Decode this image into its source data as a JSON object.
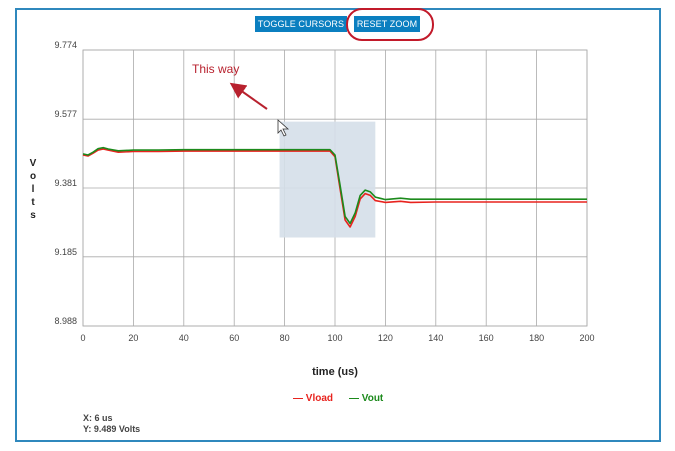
{
  "toolbar": {
    "toggle_cursors_label": "TOGGLE CURSORS",
    "reset_zoom_label": "RESET ZOOM"
  },
  "annotation": {
    "text": "This way"
  },
  "readout": {
    "x": "X: 6 us",
    "y": "Y: 9.489 Volts"
  },
  "colors": {
    "accent": "#0b7fc0",
    "frame": "#2f88bd",
    "highlight": "#c21a2a",
    "vload": "#e8231e",
    "vout": "#1c8a1c",
    "zoom_selection": "#d5dfe9"
  },
  "chart_data": {
    "type": "line",
    "xlabel": "time (us)",
    "ylabel": "Volts",
    "xlim": [
      0,
      200
    ],
    "ylim": [
      8.988,
      9.774
    ],
    "x_ticks": [
      0,
      20,
      40,
      60,
      80,
      100,
      120,
      140,
      160,
      180,
      200
    ],
    "y_ticks": [
      "8.988",
      "9.185",
      "9.381",
      "9.577",
      "9.774"
    ],
    "grid": true,
    "legend_position": "bottom-center",
    "zoom_selection": {
      "x_range": [
        78,
        116
      ],
      "y_range": [
        9.24,
        9.57
      ]
    },
    "series": [
      {
        "name": "Vload",
        "color": "#e8231e",
        "points": [
          [
            0,
            9.475
          ],
          [
            2,
            9.472
          ],
          [
            4,
            9.48
          ],
          [
            6,
            9.489
          ],
          [
            8,
            9.492
          ],
          [
            10,
            9.489
          ],
          [
            14,
            9.483
          ],
          [
            20,
            9.485
          ],
          [
            30,
            9.485
          ],
          [
            40,
            9.486
          ],
          [
            60,
            9.486
          ],
          [
            80,
            9.486
          ],
          [
            98,
            9.486
          ],
          [
            100,
            9.47
          ],
          [
            102,
            9.38
          ],
          [
            104,
            9.29
          ],
          [
            106,
            9.27
          ],
          [
            108,
            9.3
          ],
          [
            110,
            9.35
          ],
          [
            112,
            9.365
          ],
          [
            114,
            9.36
          ],
          [
            116,
            9.345
          ],
          [
            120,
            9.34
          ],
          [
            126,
            9.343
          ],
          [
            130,
            9.34
          ],
          [
            140,
            9.341
          ],
          [
            160,
            9.341
          ],
          [
            180,
            9.341
          ],
          [
            200,
            9.341
          ]
        ]
      },
      {
        "name": "Vout",
        "color": "#1c8a1c",
        "points": [
          [
            0,
            9.478
          ],
          [
            2,
            9.475
          ],
          [
            4,
            9.483
          ],
          [
            6,
            9.493
          ],
          [
            8,
            9.496
          ],
          [
            10,
            9.492
          ],
          [
            14,
            9.487
          ],
          [
            20,
            9.489
          ],
          [
            30,
            9.489
          ],
          [
            40,
            9.49
          ],
          [
            60,
            9.49
          ],
          [
            80,
            9.49
          ],
          [
            98,
            9.49
          ],
          [
            100,
            9.475
          ],
          [
            102,
            9.39
          ],
          [
            104,
            9.3
          ],
          [
            106,
            9.28
          ],
          [
            108,
            9.31
          ],
          [
            110,
            9.36
          ],
          [
            112,
            9.375
          ],
          [
            114,
            9.37
          ],
          [
            116,
            9.355
          ],
          [
            120,
            9.348
          ],
          [
            126,
            9.352
          ],
          [
            130,
            9.349
          ],
          [
            140,
            9.349
          ],
          [
            160,
            9.349
          ],
          [
            180,
            9.349
          ],
          [
            200,
            9.349
          ]
        ]
      }
    ]
  }
}
